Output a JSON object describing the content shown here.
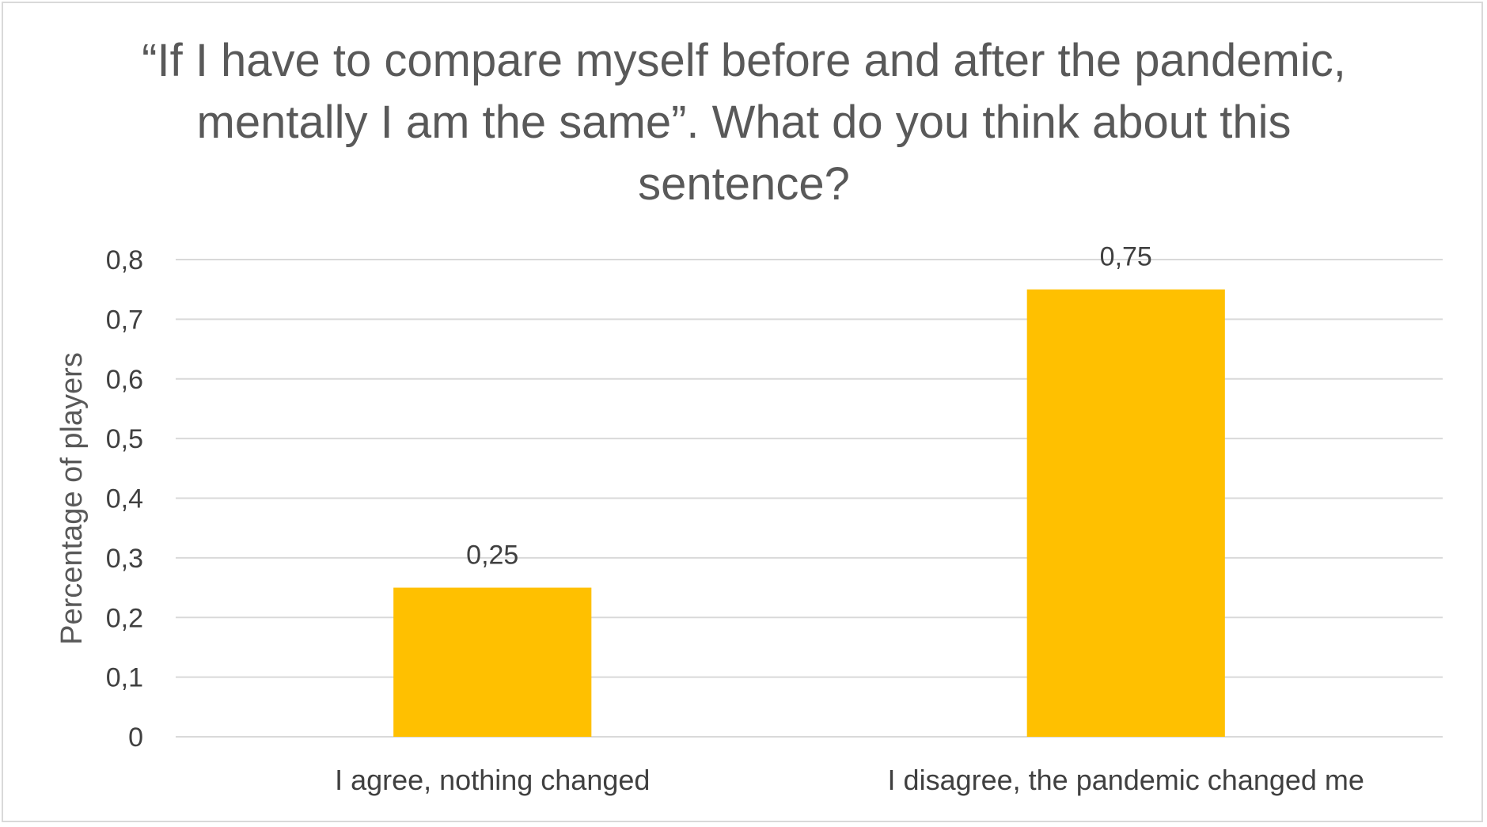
{
  "chart_data": {
    "type": "bar",
    "title": "“If I have to compare myself before and after the pandemic, mentally I am the same”. What do you think about this sentence?",
    "xlabel": "",
    "ylabel": "Percentage of players",
    "categories": [
      "I agree, nothing changed",
      "I disagree, the pandemic changed me"
    ],
    "values": [
      0.25,
      0.75
    ],
    "data_labels": [
      "0,25",
      "0,75"
    ],
    "yticks": [
      "0",
      "0,1",
      "0,2",
      "0,3",
      "0,4",
      "0,5",
      "0,6",
      "0,7",
      "0,8"
    ],
    "ylim": [
      0,
      0.8
    ],
    "grid": true,
    "legend": "none",
    "bar_color": "#FFC000",
    "grid_color": "#d9d9d9"
  }
}
